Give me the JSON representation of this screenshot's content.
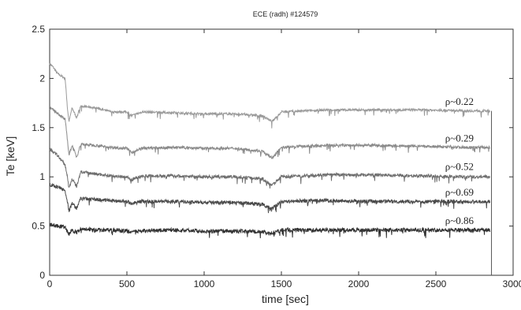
{
  "chart_data": {
    "type": "line",
    "title": "ECE (radh) #124579",
    "xlabel": "time [sec]",
    "ylabel": "Te [keV]",
    "xlim": [
      0,
      3000
    ],
    "ylim": [
      0,
      2.5
    ],
    "x_ticks": [
      0,
      500,
      1000,
      1500,
      2000,
      2500,
      3000
    ],
    "y_ticks": [
      0,
      0.5,
      1,
      1.5,
      2,
      2.5
    ],
    "x_tick_labels": [
      "0",
      "500",
      "1000",
      "1500",
      "2000",
      "2500",
      "3000"
    ],
    "y_tick_labels": [
      "0",
      "0.5",
      "1",
      "1.5",
      "2",
      "2.5"
    ],
    "grid": false,
    "series": [
      {
        "name": "ρ~0.22",
        "color": "#9a9a9a",
        "x": [
          0,
          20,
          50,
          100,
          115,
          125,
          145,
          175,
          200,
          300,
          400,
          500,
          530,
          600,
          800,
          1000,
          1200,
          1380,
          1400,
          1440,
          1500,
          1800,
          2100,
          2400,
          2700,
          2850
        ],
        "y": [
          2.15,
          2.12,
          2.05,
          2.0,
          1.7,
          1.56,
          1.7,
          1.6,
          1.72,
          1.7,
          1.66,
          1.66,
          1.62,
          1.66,
          1.65,
          1.64,
          1.64,
          1.62,
          1.6,
          1.56,
          1.66,
          1.68,
          1.68,
          1.68,
          1.67,
          1.67
        ]
      },
      {
        "name": "ρ~0.29",
        "color": "#8a8a8a",
        "x": [
          0,
          50,
          100,
          115,
          125,
          145,
          175,
          200,
          300,
          400,
          500,
          530,
          600,
          800,
          1000,
          1200,
          1380,
          1400,
          1440,
          1500,
          1800,
          2100,
          2400,
          2700,
          2850
        ],
        "y": [
          1.7,
          1.65,
          1.58,
          1.38,
          1.22,
          1.32,
          1.2,
          1.33,
          1.32,
          1.3,
          1.29,
          1.25,
          1.29,
          1.3,
          1.29,
          1.29,
          1.26,
          1.23,
          1.19,
          1.3,
          1.32,
          1.32,
          1.31,
          1.3,
          1.3
        ]
      },
      {
        "name": "ρ~0.52",
        "color": "#6e6e6e",
        "x": [
          0,
          50,
          100,
          115,
          125,
          145,
          175,
          200,
          300,
          400,
          500,
          530,
          600,
          800,
          1000,
          1200,
          1380,
          1400,
          1440,
          1500,
          1800,
          2100,
          2400,
          2700,
          2850
        ],
        "y": [
          1.28,
          1.22,
          1.12,
          1.0,
          0.88,
          0.98,
          0.9,
          1.05,
          1.03,
          1.01,
          1.0,
          0.97,
          1.01,
          1.01,
          1.0,
          1.0,
          0.98,
          0.95,
          0.92,
          1.0,
          1.02,
          1.02,
          1.01,
          1.0,
          1.0
        ]
      },
      {
        "name": "ρ~0.69",
        "color": "#4a4a4a",
        "x": [
          0,
          50,
          100,
          115,
          125,
          145,
          175,
          200,
          300,
          400,
          500,
          530,
          600,
          800,
          1000,
          1200,
          1380,
          1400,
          1440,
          1500,
          1800,
          2100,
          2400,
          2700,
          2850
        ],
        "y": [
          0.92,
          0.9,
          0.86,
          0.75,
          0.65,
          0.73,
          0.68,
          0.78,
          0.77,
          0.76,
          0.75,
          0.73,
          0.75,
          0.75,
          0.74,
          0.74,
          0.72,
          0.7,
          0.68,
          0.75,
          0.76,
          0.75,
          0.75,
          0.75,
          0.75
        ]
      },
      {
        "name": "ρ~0.86",
        "color": "#333333",
        "x": [
          0,
          50,
          100,
          115,
          125,
          145,
          175,
          200,
          300,
          400,
          500,
          530,
          600,
          800,
          1000,
          1200,
          1380,
          1400,
          1440,
          1500,
          1800,
          2100,
          2400,
          2700,
          2850
        ],
        "y": [
          0.52,
          0.5,
          0.49,
          0.44,
          0.42,
          0.46,
          0.43,
          0.47,
          0.46,
          0.46,
          0.45,
          0.44,
          0.45,
          0.46,
          0.45,
          0.45,
          0.44,
          0.43,
          0.42,
          0.46,
          0.46,
          0.46,
          0.46,
          0.46,
          0.46
        ]
      }
    ],
    "annotations": [
      {
        "text": "ρ~0.22",
        "x": 2560,
        "y": 1.73
      },
      {
        "text": "ρ~0.29",
        "x": 2560,
        "y": 1.36
      },
      {
        "text": "ρ~0.52",
        "x": 2560,
        "y": 1.07
      },
      {
        "text": "ρ~0.69",
        "x": 2560,
        "y": 0.81
      },
      {
        "text": "ρ~0.86",
        "x": 2560,
        "y": 0.52
      }
    ],
    "drop_line": {
      "x": 2860,
      "y_from": 1.67,
      "y_to": 0
    }
  }
}
